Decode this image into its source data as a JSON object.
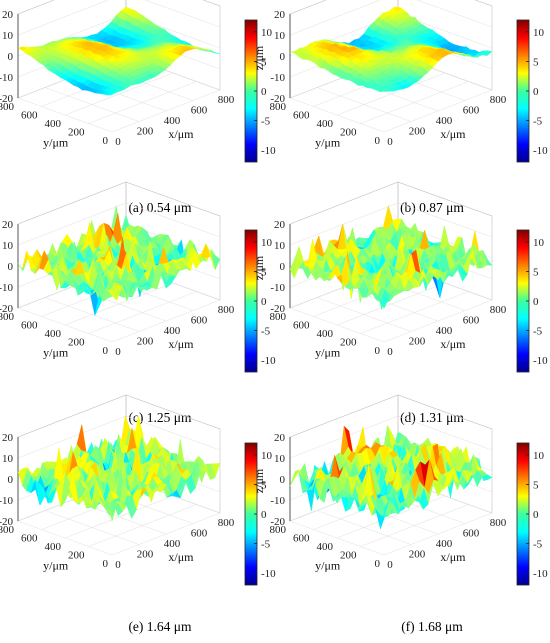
{
  "chart_data": [
    {
      "type": "surface",
      "caption": "(a) 0.54 μm",
      "roughness_um": 0.54,
      "xlabel": "x/μm",
      "ylabel": "y/μm",
      "zlabel": "z/μm",
      "xticks": [
        "0",
        "200",
        "400",
        "600",
        "800"
      ],
      "yticks": [
        "0",
        "200",
        "400",
        "600",
        "800"
      ],
      "zticks": [
        "20",
        "10",
        "0",
        "-10",
        "-20"
      ],
      "xlim": [
        0,
        800
      ],
      "ylim": [
        0,
        800
      ],
      "zlim": [
        -20,
        20
      ],
      "colorbar_ticks": [
        "10",
        "5",
        "0",
        "-5",
        "-10"
      ],
      "colorbar_range": [
        -12,
        12
      ],
      "colormap": "jet",
      "surface_character": "smooth ridges"
    },
    {
      "type": "surface",
      "caption": "(b) 0.87 μm",
      "roughness_um": 0.87,
      "xlabel": "x/μm",
      "ylabel": "y/μm",
      "zlabel": "z/μm",
      "xticks": [
        "0",
        "200",
        "400",
        "600",
        "800"
      ],
      "yticks": [
        "0",
        "200",
        "400",
        "600",
        "800"
      ],
      "zticks": [
        "20",
        "10",
        "0",
        "-10",
        "-20"
      ],
      "xlim": [
        0,
        800
      ],
      "ylim": [
        0,
        800
      ],
      "zlim": [
        -20,
        20
      ],
      "colorbar_ticks": [
        "10",
        "5",
        "0",
        "-5",
        "-10"
      ],
      "colorbar_range": [
        -12,
        12
      ],
      "colormap": "jet",
      "surface_character": "ridged"
    },
    {
      "type": "surface",
      "caption": "(c) 1.25 μm",
      "roughness_um": 1.25,
      "xlabel": "x/μm",
      "ylabel": "y/μm",
      "zlabel": "z/μm",
      "xticks": [
        "0",
        "200",
        "400",
        "600",
        "800"
      ],
      "yticks": [
        "0",
        "200",
        "400",
        "600",
        "800"
      ],
      "zticks": [
        "20",
        "10",
        "0",
        "-10",
        "-20"
      ],
      "xlim": [
        0,
        800
      ],
      "ylim": [
        0,
        800
      ],
      "zlim": [
        -20,
        20
      ],
      "colorbar_ticks": [
        "10",
        "5",
        "0",
        "-5",
        "-10"
      ],
      "colorbar_range": [
        -12,
        12
      ],
      "colormap": "jet",
      "surface_character": "spiky"
    },
    {
      "type": "surface",
      "caption": "(d) 1.31 μm",
      "roughness_um": 1.31,
      "xlabel": "x/μm",
      "ylabel": "y/μm",
      "zlabel": "z/μm",
      "xticks": [
        "0",
        "200",
        "400",
        "600",
        "800"
      ],
      "yticks": [
        "0",
        "200",
        "400",
        "600",
        "800"
      ],
      "zticks": [
        "20",
        "10",
        "0",
        "-10",
        "-20"
      ],
      "xlim": [
        0,
        800
      ],
      "ylim": [
        0,
        800
      ],
      "zlim": [
        -20,
        20
      ],
      "colorbar_ticks": [
        "10",
        "5",
        "0",
        "-5",
        "-10"
      ],
      "colorbar_range": [
        -12,
        12
      ],
      "colormap": "jet",
      "surface_character": "spiky"
    },
    {
      "type": "surface",
      "caption": "(e) 1.64 μm",
      "roughness_um": 1.64,
      "xlabel": "x/μm",
      "ylabel": "y/μm",
      "zlabel": "z/μm",
      "xticks": [
        "0",
        "200",
        "400",
        "600",
        "800"
      ],
      "yticks": [
        "0",
        "200",
        "400",
        "600",
        "800"
      ],
      "zticks": [
        "20",
        "10",
        "0",
        "-10",
        "-20"
      ],
      "xlim": [
        0,
        800
      ],
      "ylim": [
        0,
        800
      ],
      "zlim": [
        -20,
        20
      ],
      "colorbar_ticks": [
        "10",
        "5",
        "0",
        "-5",
        "-10"
      ],
      "colorbar_range": [
        -12,
        12
      ],
      "colormap": "jet",
      "surface_character": "rough"
    },
    {
      "type": "surface",
      "caption": "(f) 1.68 μm",
      "roughness_um": 1.68,
      "xlabel": "x/μm",
      "ylabel": "y/μm",
      "zlabel": "z/μm",
      "xticks": [
        "0",
        "200",
        "400",
        "600",
        "800"
      ],
      "yticks": [
        "0",
        "200",
        "400",
        "600",
        "800"
      ],
      "zticks": [
        "20",
        "10",
        "0",
        "-10",
        "-20"
      ],
      "xlim": [
        0,
        800
      ],
      "ylim": [
        0,
        800
      ],
      "zlim": [
        -20,
        20
      ],
      "colorbar_ticks": [
        "10",
        "5",
        "0",
        "-5",
        "-10"
      ],
      "colorbar_range": [
        -12,
        12
      ],
      "colormap": "jet",
      "surface_character": "rough"
    }
  ]
}
